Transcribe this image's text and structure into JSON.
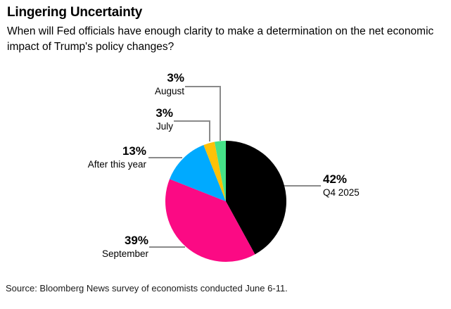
{
  "chart_data": {
    "type": "pie",
    "title": "Lingering Uncertainty",
    "subtitle": "When will Fed officials have enough clarity to make a determination on the net economic impact of Trump's policy changes?",
    "categories": [
      "Q4 2025",
      "September",
      "After this year",
      "July",
      "August"
    ],
    "values": [
      42,
      39,
      13,
      3,
      3
    ],
    "value_labels": [
      "42%",
      "39%",
      "13%",
      "3%",
      "3%"
    ],
    "colors": [
      "#000000",
      "#fb0a84",
      "#00aaff",
      "#ffc107",
      "#45e288"
    ],
    "unit": "%",
    "start_angle_deg": 0,
    "direction": "clockwise",
    "legend_position": "none",
    "label_style": "callouts-with-leader-lines",
    "leader_line_color": "#8a8a8a",
    "background_color": "#ffffff",
    "text_color": "#000000",
    "source": "Source: Bloomberg News survey of economists conducted June 6-11."
  }
}
